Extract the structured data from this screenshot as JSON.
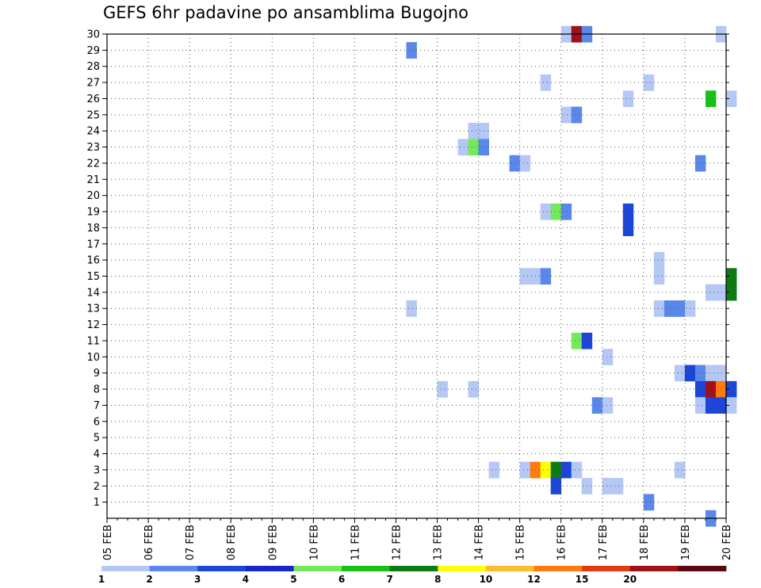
{
  "chart_data": {
    "type": "heatmap",
    "title": "GEFS 6hr padavine po ansamblima Bugojno",
    "x_tick_labels": [
      "05 FEB",
      "06 FEB",
      "07 FEB",
      "08 FEB",
      "09 FEB",
      "10 FEB",
      "11 FEB",
      "12 FEB",
      "13 FEB",
      "14 FEB",
      "15 FEB",
      "16 FEB",
      "17 FEB",
      "18 FEB",
      "19 FEB",
      "20 FEB"
    ],
    "x_range_days": [
      0,
      15
    ],
    "time_step_hours": 6,
    "y_tick_labels": [
      "1",
      "2",
      "3",
      "4",
      "5",
      "6",
      "7",
      "8",
      "9",
      "10",
      "11",
      "12",
      "13",
      "14",
      "15",
      "16",
      "17",
      "18",
      "19",
      "20",
      "21",
      "22",
      "23",
      "24",
      "25",
      "26",
      "27",
      "28",
      "29",
      "30"
    ],
    "y_range": [
      0,
      30
    ],
    "grid": true,
    "colorbar": {
      "labels": [
        "1",
        "2",
        "3",
        "4",
        "5",
        "6",
        "7",
        "8",
        "10",
        "12",
        "15",
        "20"
      ],
      "colors": [
        "#b4c7f5",
        "#5a87ea",
        "#1c46d8",
        "#1428c8",
        "#72ea5a",
        "#18c018",
        "#0d7a14",
        "#ffff00",
        "#ffbc2e",
        "#ff7a10",
        "#e03c10",
        "#a01018",
        "#5a0810"
      ]
    },
    "cells": [
      {
        "m": 30,
        "t": 44,
        "lvl": 0
      },
      {
        "m": 30,
        "t": 45,
        "lvl": 11
      },
      {
        "m": 30,
        "t": 46,
        "lvl": 1
      },
      {
        "m": 30,
        "t": 59,
        "lvl": 0
      },
      {
        "m": 29,
        "t": 29,
        "lvl": 1
      },
      {
        "m": 27,
        "t": 42,
        "lvl": 0
      },
      {
        "m": 27,
        "t": 52,
        "lvl": 0
      },
      {
        "m": 26,
        "t": 50,
        "lvl": 0
      },
      {
        "m": 26,
        "t": 58,
        "lvl": 5
      },
      {
        "m": 26,
        "t": 60,
        "lvl": 0
      },
      {
        "m": 25,
        "t": 44,
        "lvl": 0
      },
      {
        "m": 25,
        "t": 45,
        "lvl": 1
      },
      {
        "m": 24,
        "t": 35,
        "lvl": 0
      },
      {
        "m": 24,
        "t": 36,
        "lvl": 0
      },
      {
        "m": 23,
        "t": 34,
        "lvl": 0
      },
      {
        "m": 23,
        "t": 35,
        "lvl": 4
      },
      {
        "m": 23,
        "t": 36,
        "lvl": 1
      },
      {
        "m": 22,
        "t": 39,
        "lvl": 1
      },
      {
        "m": 22,
        "t": 40,
        "lvl": 0
      },
      {
        "m": 22,
        "t": 57,
        "lvl": 1
      },
      {
        "m": 19,
        "t": 42,
        "lvl": 0
      },
      {
        "m": 19,
        "t": 43,
        "lvl": 4
      },
      {
        "m": 19,
        "t": 44,
        "lvl": 1
      },
      {
        "m": 19,
        "t": 50,
        "lvl": 2
      },
      {
        "m": 18,
        "t": 50,
        "lvl": 2
      },
      {
        "m": 16,
        "t": 53,
        "lvl": 0
      },
      {
        "m": 15,
        "t": 40,
        "lvl": 0
      },
      {
        "m": 15,
        "t": 41,
        "lvl": 0
      },
      {
        "m": 15,
        "t": 42,
        "lvl": 1
      },
      {
        "m": 15,
        "t": 53,
        "lvl": 0
      },
      {
        "m": 15,
        "t": 60,
        "lvl": 6
      },
      {
        "m": 14,
        "t": 58,
        "lvl": 0
      },
      {
        "m": 14,
        "t": 59,
        "lvl": 0
      },
      {
        "m": 14,
        "t": 60,
        "lvl": 6
      },
      {
        "m": 13,
        "t": 29,
        "lvl": 0
      },
      {
        "m": 13,
        "t": 53,
        "lvl": 0
      },
      {
        "m": 13,
        "t": 54,
        "lvl": 1
      },
      {
        "m": 13,
        "t": 55,
        "lvl": 1
      },
      {
        "m": 13,
        "t": 56,
        "lvl": 0
      },
      {
        "m": 11,
        "t": 45,
        "lvl": 4
      },
      {
        "m": 11,
        "t": 46,
        "lvl": 2
      },
      {
        "m": 10,
        "t": 48,
        "lvl": 0
      },
      {
        "m": 9,
        "t": 55,
        "lvl": 0
      },
      {
        "m": 9,
        "t": 56,
        "lvl": 2
      },
      {
        "m": 9,
        "t": 57,
        "lvl": 1
      },
      {
        "m": 9,
        "t": 58,
        "lvl": 0
      },
      {
        "m": 9,
        "t": 59,
        "lvl": 0
      },
      {
        "m": 8,
        "t": 32,
        "lvl": 0
      },
      {
        "m": 8,
        "t": 35,
        "lvl": 0
      },
      {
        "m": 8,
        "t": 57,
        "lvl": 2
      },
      {
        "m": 8,
        "t": 58,
        "lvl": 11
      },
      {
        "m": 8,
        "t": 59,
        "lvl": 9
      },
      {
        "m": 8,
        "t": 60,
        "lvl": 2
      },
      {
        "m": 7,
        "t": 47,
        "lvl": 1
      },
      {
        "m": 7,
        "t": 48,
        "lvl": 0
      },
      {
        "m": 7,
        "t": 57,
        "lvl": 0
      },
      {
        "m": 7,
        "t": 58,
        "lvl": 2
      },
      {
        "m": 7,
        "t": 59,
        "lvl": 2
      },
      {
        "m": 7,
        "t": 60,
        "lvl": 0
      },
      {
        "m": 3,
        "t": 37,
        "lvl": 0
      },
      {
        "m": 3,
        "t": 40,
        "lvl": 0
      },
      {
        "m": 3,
        "t": 41,
        "lvl": 9
      },
      {
        "m": 3,
        "t": 42,
        "lvl": 7
      },
      {
        "m": 3,
        "t": 43,
        "lvl": 6
      },
      {
        "m": 3,
        "t": 44,
        "lvl": 2
      },
      {
        "m": 3,
        "t": 45,
        "lvl": 0
      },
      {
        "m": 3,
        "t": 55,
        "lvl": 0
      },
      {
        "m": 2,
        "t": 43,
        "lvl": 2
      },
      {
        "m": 2,
        "t": 46,
        "lvl": 0
      },
      {
        "m": 2,
        "t": 48,
        "lvl": 0
      },
      {
        "m": 2,
        "t": 49,
        "lvl": 0
      },
      {
        "m": 1,
        "t": 52,
        "lvl": 1
      },
      {
        "m": 0,
        "t": 58,
        "lvl": 1
      }
    ]
  }
}
